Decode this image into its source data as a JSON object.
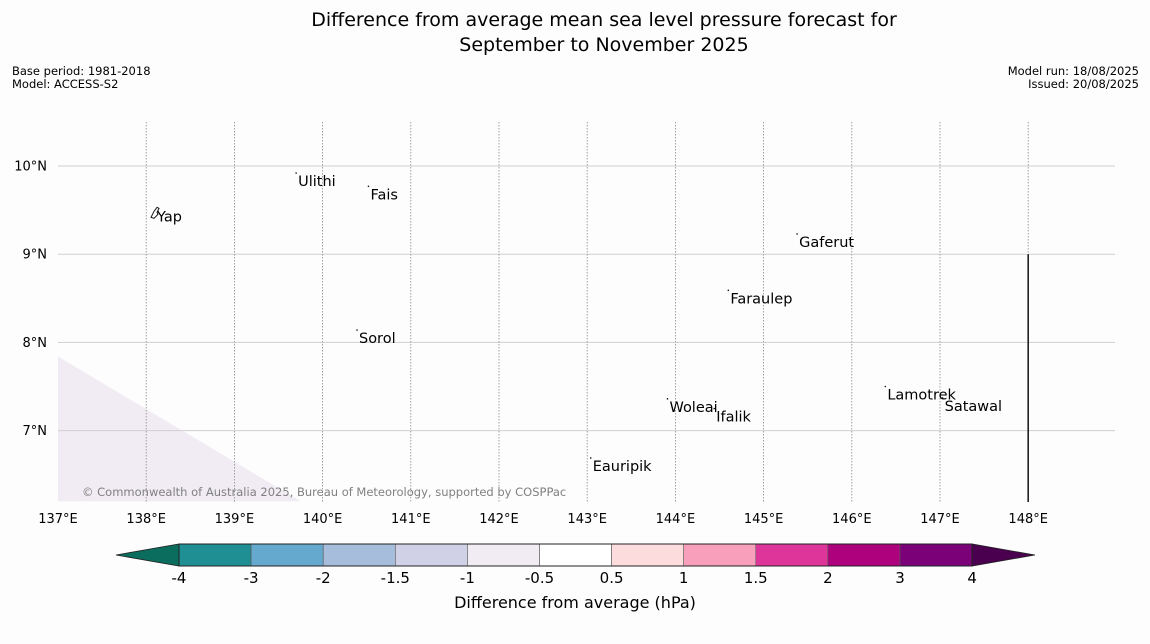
{
  "title": {
    "line1": "Difference from average mean sea level pressure forecast for",
    "line2": "September to November 2025"
  },
  "info_left": {
    "base_period": "Base period: 1981-2018",
    "model": "Model: ACCESS-S2"
  },
  "info_right": {
    "model_run": "Model run: 18/08/2025",
    "issued": "Issued: 20/08/2025"
  },
  "map": {
    "extent": {
      "lon": [
        137,
        149
      ],
      "lat": [
        6.2,
        10.5
      ]
    },
    "lon_ticks": [
      137,
      138,
      139,
      140,
      141,
      142,
      143,
      144,
      145,
      146,
      147,
      148
    ],
    "lon_labels": [
      "137°E",
      "138°E",
      "139°E",
      "140°E",
      "141°E",
      "142°E",
      "143°E",
      "144°E",
      "145°E",
      "146°E",
      "147°E",
      "148°E"
    ],
    "lat_ticks": [
      10,
      9,
      8,
      7
    ],
    "lat_labels": [
      "10°N",
      "9°N",
      "8°N",
      "7°N"
    ],
    "border_line": {
      "lon": 148,
      "lat_from": 6.2,
      "lat_to": 9
    },
    "shaded_region": {
      "category": "-1 to -0.5",
      "color": "#f1ecf3",
      "polygon": [
        [
          137,
          7.84
        ],
        [
          139.75,
          6.2
        ],
        [
          137,
          6.2
        ]
      ]
    },
    "places": [
      {
        "name": "Yap",
        "lon": 138.1,
        "lat": 9.52
      },
      {
        "name": "Ulithi",
        "lon": 139.7,
        "lat": 9.92
      },
      {
        "name": "Fais",
        "lon": 140.52,
        "lat": 9.77
      },
      {
        "name": "Gaferut",
        "lon": 145.38,
        "lat": 9.23
      },
      {
        "name": "Faraulep",
        "lon": 144.6,
        "lat": 8.59
      },
      {
        "name": "Sorol",
        "lon": 140.39,
        "lat": 8.14
      },
      {
        "name": "Woleai",
        "lon": 143.91,
        "lat": 7.36
      },
      {
        "name": "Ifalik",
        "lon": 144.44,
        "lat": 7.25
      },
      {
        "name": "Lamotrek",
        "lon": 146.38,
        "lat": 7.5
      },
      {
        "name": "Satawal",
        "lon": 147.03,
        "lat": 7.37
      },
      {
        "name": "Eauripik",
        "lon": 143.04,
        "lat": 6.69
      }
    ],
    "attribution": "© Commonwealth of Australia 2025, Bureau of Meteorology, supported by COSPPac"
  },
  "legend": {
    "label": "Difference from average (hPa)",
    "tick_labels": [
      "-4",
      "-3",
      "-2",
      "-1.5",
      "-1",
      "-0.5",
      "0.5",
      "1",
      "1.5",
      "2",
      "3",
      "4"
    ],
    "extend_low_color": "#0b6d5e",
    "extend_high_color": "#4a004f",
    "colors": [
      "#1f8f94",
      "#66a9cf",
      "#a6bddb",
      "#d0d1e6",
      "#f1ecf3",
      "#ffffff",
      "#fddcdd",
      "#f89fbb",
      "#dd359a",
      "#ad017e",
      "#7a0177"
    ]
  }
}
